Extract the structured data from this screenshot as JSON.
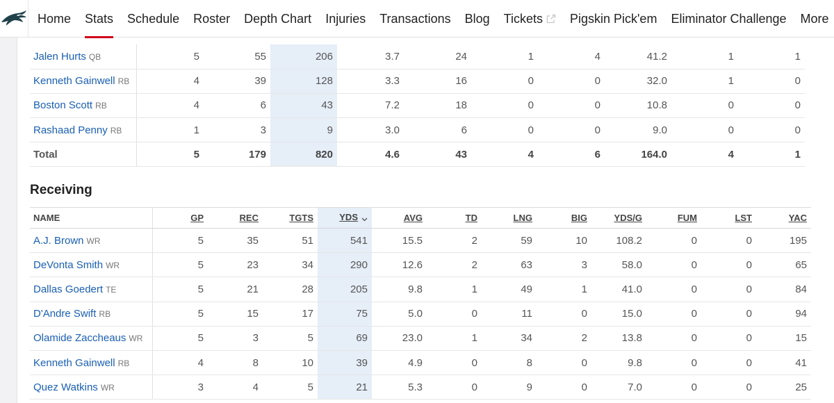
{
  "nav": {
    "items": [
      {
        "label": "Home"
      },
      {
        "label": "Stats",
        "active": true
      },
      {
        "label": "Schedule"
      },
      {
        "label": "Roster"
      },
      {
        "label": "Depth Chart"
      },
      {
        "label": "Injuries"
      },
      {
        "label": "Transactions"
      },
      {
        "label": "Blog"
      },
      {
        "label": "Tickets",
        "external": true
      },
      {
        "label": "Pigskin Pick'em"
      },
      {
        "label": "Eliminator Challenge"
      },
      {
        "label": "More"
      }
    ],
    "accent_color": "#d0021b",
    "logo_icon": "eagle-logo-icon"
  },
  "rushing": {
    "rows": [
      {
        "name": "Jalen Hurts",
        "pos": "QB",
        "stats": [
          "5",
          "55",
          "206",
          "3.7",
          "24",
          "1",
          "4",
          "41.2",
          "1",
          "1"
        ]
      },
      {
        "name": "Kenneth Gainwell",
        "pos": "RB",
        "stats": [
          "4",
          "39",
          "128",
          "3.3",
          "16",
          "0",
          "0",
          "32.0",
          "1",
          "0"
        ]
      },
      {
        "name": "Boston Scott",
        "pos": "RB",
        "stats": [
          "4",
          "6",
          "43",
          "7.2",
          "18",
          "0",
          "0",
          "10.8",
          "0",
          "0"
        ]
      },
      {
        "name": "Rashaad Penny",
        "pos": "RB",
        "stats": [
          "1",
          "3",
          "9",
          "3.0",
          "6",
          "0",
          "0",
          "9.0",
          "0",
          "0"
        ]
      }
    ],
    "total": {
      "label": "Total",
      "stats": [
        "5",
        "179",
        "820",
        "4.6",
        "43",
        "4",
        "6",
        "164.0",
        "4",
        "1"
      ]
    }
  },
  "receiving": {
    "title": "Receiving",
    "name_header": "NAME",
    "headers": [
      "GP",
      "REC",
      "TGTS",
      "YDS",
      "AVG",
      "TD",
      "LNG",
      "BIG",
      "YDS/G",
      "FUM",
      "LST",
      "YAC"
    ],
    "sorted_column": "YDS",
    "rows": [
      {
        "name": "A.J. Brown",
        "pos": "WR",
        "stats": [
          "5",
          "35",
          "51",
          "541",
          "15.5",
          "2",
          "59",
          "10",
          "108.2",
          "0",
          "0",
          "195"
        ]
      },
      {
        "name": "DeVonta Smith",
        "pos": "WR",
        "stats": [
          "5",
          "23",
          "34",
          "290",
          "12.6",
          "2",
          "63",
          "3",
          "58.0",
          "0",
          "0",
          "65"
        ]
      },
      {
        "name": "Dallas Goedert",
        "pos": "TE",
        "stats": [
          "5",
          "21",
          "28",
          "205",
          "9.8",
          "1",
          "49",
          "1",
          "41.0",
          "0",
          "0",
          "84"
        ]
      },
      {
        "name": "D'Andre Swift",
        "pos": "RB",
        "stats": [
          "5",
          "15",
          "17",
          "75",
          "5.0",
          "0",
          "11",
          "0",
          "15.0",
          "0",
          "0",
          "94"
        ]
      },
      {
        "name": "Olamide Zaccheaus",
        "pos": "WR",
        "stats": [
          "5",
          "3",
          "5",
          "69",
          "23.0",
          "1",
          "34",
          "2",
          "13.8",
          "0",
          "0",
          "15"
        ]
      },
      {
        "name": "Kenneth Gainwell",
        "pos": "RB",
        "stats": [
          "4",
          "8",
          "10",
          "39",
          "4.9",
          "0",
          "8",
          "0",
          "9.8",
          "0",
          "0",
          "41"
        ]
      },
      {
        "name": "Quez Watkins",
        "pos": "WR",
        "stats": [
          "3",
          "4",
          "5",
          "21",
          "5.3",
          "0",
          "9",
          "0",
          "7.0",
          "0",
          "0",
          "25"
        ]
      }
    ]
  }
}
